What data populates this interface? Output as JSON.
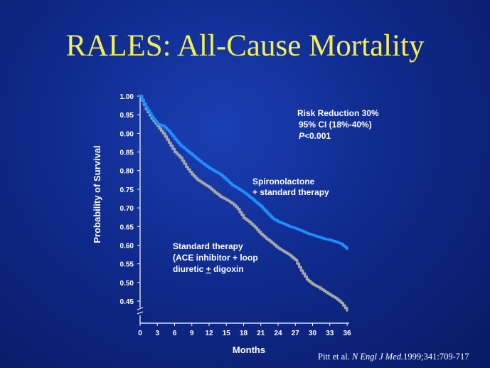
{
  "title": "RALES: All-Cause Mortality",
  "citation": {
    "authors": "Pitt et al. ",
    "journal": "N Engl J Med.",
    "ref": "1999;341:709-717"
  },
  "colors": {
    "title": "#f4ee55",
    "text": "#ffffff",
    "spironolactone": "#1e8fff",
    "standard": "#a6a6a6"
  },
  "chart_data": {
    "type": "line",
    "title": "",
    "xlabel": "Months",
    "ylabel": "Probability of Survival",
    "xlim": [
      0,
      36
    ],
    "ylim": [
      0.45,
      1.0
    ],
    "y_axis_break": true,
    "x_ticks": [
      "0",
      "3",
      "6",
      "9",
      "12",
      "15",
      "18",
      "21",
      "24",
      "27",
      "30",
      "33",
      "36"
    ],
    "y_ticks": [
      "1.00",
      "0.95",
      "0.90",
      "0.85",
      "0.80",
      "0.75",
      "0.70",
      "0.65",
      "0.60",
      "0.55",
      "0.50",
      "0.45"
    ],
    "series": [
      {
        "name": "Spironolactone + standard therapy",
        "color": "#1e8fff",
        "x": [
          0,
          1,
          2,
          3,
          4,
          5,
          6,
          7,
          8,
          9,
          10,
          11,
          12,
          13,
          14,
          15,
          16,
          17,
          18,
          19,
          20,
          21,
          22,
          23,
          24,
          25,
          26,
          27,
          28,
          29,
          30,
          31,
          32,
          33,
          34,
          35,
          36
        ],
        "y": [
          1.0,
          0.97,
          0.945,
          0.925,
          0.92,
          0.905,
          0.885,
          0.868,
          0.855,
          0.843,
          0.83,
          0.818,
          0.807,
          0.798,
          0.789,
          0.775,
          0.761,
          0.752,
          0.742,
          0.73,
          0.717,
          0.704,
          0.688,
          0.672,
          0.663,
          0.657,
          0.65,
          0.645,
          0.639,
          0.632,
          0.627,
          0.622,
          0.617,
          0.614,
          0.609,
          0.603,
          0.59
        ]
      },
      {
        "name": "Standard therapy (ACE inhibitor + loop diuretic + digoxin)",
        "color": "#a6a6a6",
        "x": [
          0,
          1,
          2,
          3,
          4,
          5,
          6,
          7,
          8,
          9,
          10,
          11,
          12,
          13,
          14,
          15,
          16,
          17,
          18,
          19,
          20,
          21,
          22,
          23,
          24,
          25,
          26,
          27,
          28,
          29,
          30,
          31,
          32,
          33,
          34,
          35,
          36
        ],
        "y": [
          1.0,
          0.965,
          0.94,
          0.92,
          0.9,
          0.875,
          0.85,
          0.835,
          0.81,
          0.79,
          0.775,
          0.765,
          0.755,
          0.742,
          0.73,
          0.722,
          0.712,
          0.697,
          0.673,
          0.662,
          0.647,
          0.63,
          0.617,
          0.605,
          0.592,
          0.583,
          0.573,
          0.56,
          0.532,
          0.508,
          0.495,
          0.487,
          0.477,
          0.467,
          0.458,
          0.445,
          0.425
        ]
      }
    ],
    "annotations": {
      "stats": [
        "Risk Reduction 30%",
        "95% CI (18%-40%)",
        "<0.001"
      ],
      "stats_p_symbol": "P",
      "spiro_label": [
        "Spironolactone",
        "+ standard therapy"
      ],
      "standard_label": [
        "Standard therapy",
        "(ACE inhibitor + loop",
        "diuretic ",
        "+",
        " digoxin"
      ]
    }
  }
}
